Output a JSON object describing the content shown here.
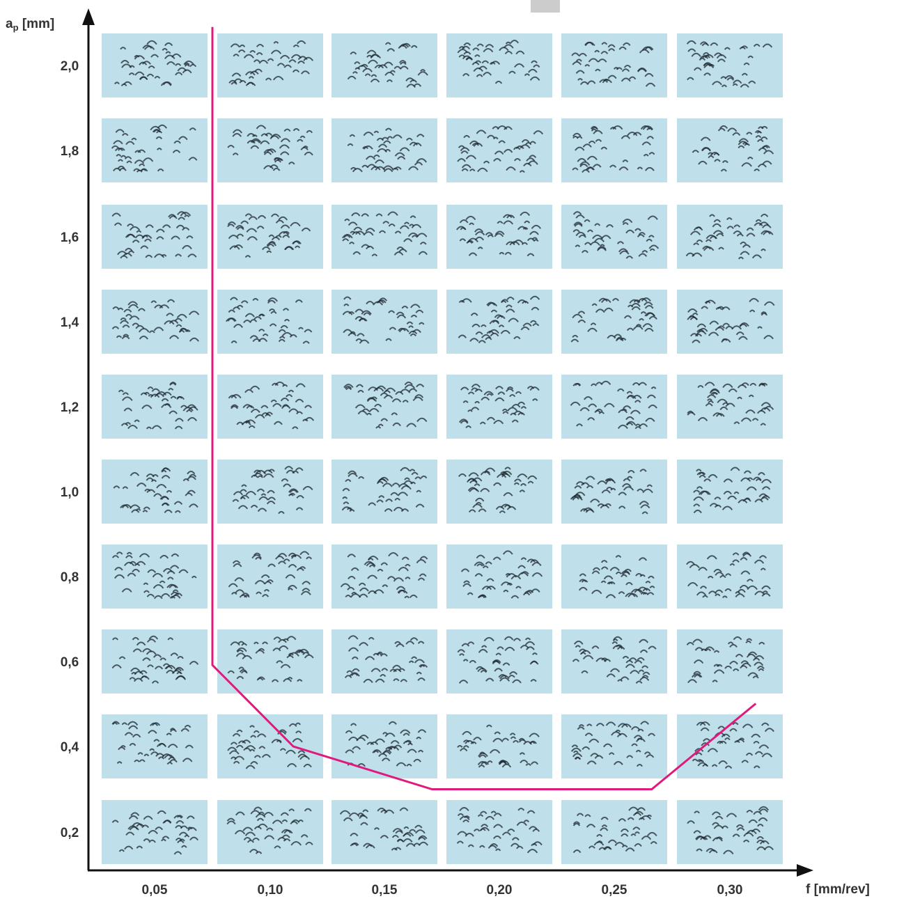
{
  "chart_data": {
    "type": "scatter",
    "subtype": "image-grid",
    "x_axis": {
      "label_main": "f",
      "label_unit": "[mm/rev]",
      "ticks": [
        "0,05",
        "0,10",
        "0,15",
        "0,20",
        "0,25",
        "0,30"
      ],
      "values": [
        0.05,
        0.1,
        0.15,
        0.2,
        0.25,
        0.3
      ]
    },
    "y_axis": {
      "label_main": "a",
      "label_sub": "p",
      "label_unit": "[mm]",
      "ticks": [
        "0,2",
        "0,4",
        "0,6",
        "0,8",
        "1,0",
        "1,2",
        "1,4",
        "1,6",
        "1,8",
        "2,0"
      ],
      "values": [
        0.2,
        0.4,
        0.6,
        0.8,
        1.0,
        1.2,
        1.4,
        1.6,
        1.8,
        2.0
      ]
    },
    "cells": {
      "description_note": "Each cell is a photograph of machining chips on a light-blue background at the given feed f and depth of cut a_p.",
      "background_color": "#bfe0ea",
      "chip_color": "#1f2a33"
    },
    "boundary_line": {
      "color": "#e0197c",
      "points": [
        {
          "f": 0.075,
          "ap": 2.08
        },
        {
          "f": 0.075,
          "ap": 0.59
        },
        {
          "f": 0.11,
          "ap": 0.4
        },
        {
          "f": 0.17,
          "ap": 0.3
        },
        {
          "f": 0.265,
          "ap": 0.3
        },
        {
          "f": 0.31,
          "ap": 0.5
        }
      ]
    },
    "colors": {
      "axis": "#111111",
      "label": "#333333",
      "marker": "#cccccc"
    }
  }
}
